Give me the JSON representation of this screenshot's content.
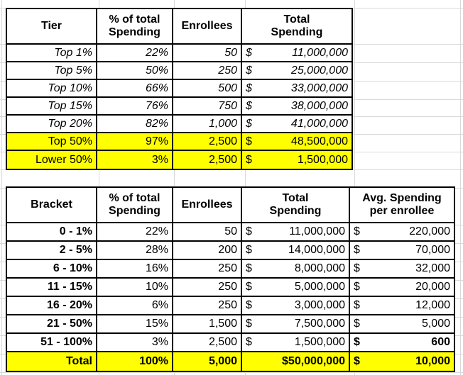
{
  "colors": {
    "highlight": "#ffff00",
    "table_border": "#000000",
    "gridline": "#d9d9d9",
    "background": "#ffffff",
    "text": "#000000"
  },
  "table1": {
    "headers": [
      "Tier",
      "% of total\nSpending",
      "Enrollees",
      "Total\nSpending"
    ],
    "rows": [
      {
        "tier": "Top 1%",
        "pct": "22%",
        "enr": "50",
        "sp_d": "$",
        "sp_v": "11,000,000",
        "hl": false
      },
      {
        "tier": "Top 5%",
        "pct": "50%",
        "enr": "250",
        "sp_d": "$",
        "sp_v": "25,000,000",
        "hl": false
      },
      {
        "tier": "Top 10%",
        "pct": "66%",
        "enr": "500",
        "sp_d": "$",
        "sp_v": "33,000,000",
        "hl": false
      },
      {
        "tier": "Top 15%",
        "pct": "76%",
        "enr": "750",
        "sp_d": "$",
        "sp_v": "38,000,000",
        "hl": false
      },
      {
        "tier": "Top 20%",
        "pct": "82%",
        "enr": "1,000",
        "sp_d": "$",
        "sp_v": "41,000,000",
        "hl": false
      },
      {
        "tier": "Top 50%",
        "pct": "97%",
        "enr": "2,500",
        "sp_d": "$",
        "sp_v": "48,500,000",
        "hl": true
      },
      {
        "tier": "Lower 50%",
        "pct": "3%",
        "enr": "2,500",
        "sp_d": "$",
        "sp_v": "1,500,000",
        "hl": true
      }
    ]
  },
  "table2": {
    "headers": [
      "Bracket",
      "% of total\nSpending",
      "Enrollees",
      "Total\nSpending",
      "Avg. Spending\nper enrollee"
    ],
    "rows": [
      {
        "bracket": "0 - 1%",
        "pct": "22%",
        "enr": "50",
        "sp_d": "$",
        "sp_v": "11,000,000",
        "avg_d": "$",
        "avg_v": "220,000",
        "hl": false,
        "bold": false,
        "avg_bold": false
      },
      {
        "bracket": "2 - 5%",
        "pct": "28%",
        "enr": "200",
        "sp_d": "$",
        "sp_v": "14,000,000",
        "avg_d": "$",
        "avg_v": "70,000",
        "hl": false,
        "bold": false,
        "avg_bold": false
      },
      {
        "bracket": "6 - 10%",
        "pct": "16%",
        "enr": "250",
        "sp_d": "$",
        "sp_v": "8,000,000",
        "avg_d": "$",
        "avg_v": "32,000",
        "hl": false,
        "bold": false,
        "avg_bold": false
      },
      {
        "bracket": "11 - 15%",
        "pct": "10%",
        "enr": "250",
        "sp_d": "$",
        "sp_v": "5,000,000",
        "avg_d": "$",
        "avg_v": "20,000",
        "hl": false,
        "bold": false,
        "avg_bold": false
      },
      {
        "bracket": "16 - 20%",
        "pct": "6%",
        "enr": "250",
        "sp_d": "$",
        "sp_v": "3,000,000",
        "avg_d": "$",
        "avg_v": "12,000",
        "hl": false,
        "bold": false,
        "avg_bold": false
      },
      {
        "bracket": "21 - 50%",
        "pct": "15%",
        "enr": "1,500",
        "sp_d": "$",
        "sp_v": "7,500,000",
        "avg_d": "$",
        "avg_v": "5,000",
        "hl": false,
        "bold": false,
        "avg_bold": false
      },
      {
        "bracket": "51 - 100%",
        "pct": "3%",
        "enr": "2,500",
        "sp_d": "$",
        "sp_v": "1,500,000",
        "avg_d": "$",
        "avg_v": "600",
        "hl": false,
        "bold": false,
        "avg_bold": true
      },
      {
        "bracket": "Total",
        "pct": "100%",
        "enr": "5,000",
        "sp_d": "",
        "sp_v": "$50,000,000",
        "avg_d": "$",
        "avg_v": "10,000",
        "hl": true,
        "bold": true,
        "avg_bold": true
      }
    ]
  }
}
